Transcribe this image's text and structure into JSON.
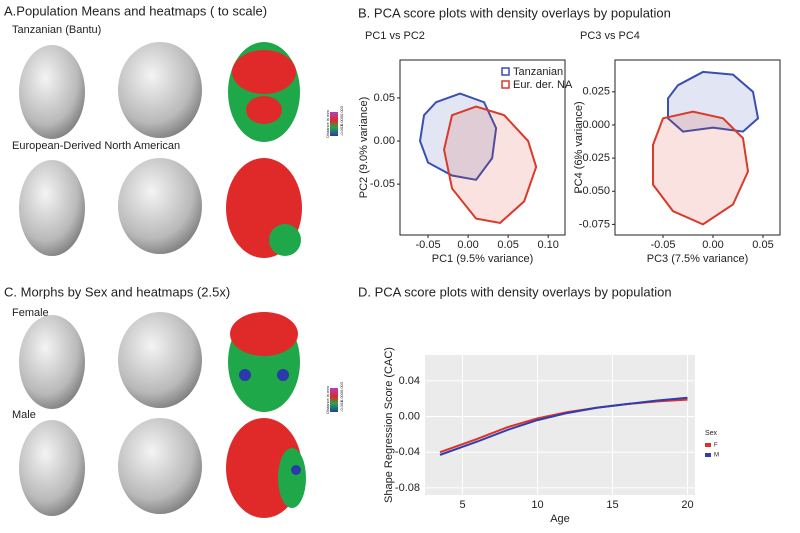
{
  "panels": {
    "a": {
      "title": "A.Population Means and heatmaps ( to scale)",
      "rows": [
        "Tanzanian (Bantu)",
        "European-Derived North American"
      ],
      "colorbar": {
        "title": "Distance in mm",
        "labels": [
          "-0.003",
          "0.000",
          "0.003"
        ]
      }
    },
    "b": {
      "title": "B. PCA score plots with density overlays by population"
    },
    "c": {
      "title": "C. Morphs by Sex and heatmaps (2.5x)",
      "rows": [
        "Female",
        "Male"
      ],
      "colorbar": {
        "title": "Distance in mm",
        "labels": [
          "-0.003",
          "0.000",
          "0.003"
        ]
      }
    },
    "d": {
      "title": "D. PCA score plots with density overlays by population"
    }
  },
  "chart_data": [
    {
      "type": "contour",
      "subtitle": "PC1 vs PC2",
      "x_label": "PC1 (9.5% variance)",
      "y_label": "PC2 (9.0% variance)",
      "xlim": [
        -0.085,
        0.121
      ],
      "ylim": [
        -0.109,
        0.094
      ],
      "xticks": [
        -0.05,
        {
          "value": 0,
          "label": "0.00"
        },
        0.05,
        {
          "value": 0.1,
          "label": "0.10"
        }
      ],
      "yticks": [
        0.05,
        {
          "value": 0,
          "label": "0.00"
        },
        -0.05
      ],
      "series": [
        {
          "name": "Tanzanian",
          "color": "#3a4fb0",
          "x": [
            -0.04,
            -0.01,
            0.02,
            0.035,
            0.03,
            0.01,
            -0.02,
            -0.05,
            -0.06,
            -0.055
          ],
          "y": [
            0.045,
            0.055,
            0.045,
            0.015,
            -0.02,
            -0.045,
            -0.04,
            -0.025,
            0.0,
            0.03
          ]
        },
        {
          "name": "Eur. der. NA",
          "color": "#d93a2a",
          "x": [
            -0.02,
            0.01,
            0.045,
            0.075,
            0.085,
            0.07,
            0.04,
            0.01,
            -0.02,
            -0.03
          ],
          "y": [
            0.03,
            0.04,
            0.03,
            0.0,
            -0.03,
            -0.07,
            -0.095,
            -0.09,
            -0.055,
            -0.01
          ]
        }
      ]
    },
    {
      "type": "contour",
      "subtitle": "PC3 vs PC4",
      "x_label": "PC3 (7.5% variance)",
      "y_label": "PC4 (6% variance)",
      "xlim": [
        -0.098,
        0.067
      ],
      "ylim": [
        -0.083,
        0.049
      ],
      "xticks": [
        -0.05,
        {
          "value": 0,
          "label": "0.00"
        },
        0.05
      ],
      "yticks": [
        0.025,
        {
          "value": 0,
          "label": "0.000"
        },
        -0.025,
        {
          "value": -0.05,
          "label": "-0.050"
        },
        -0.075
      ],
      "series": [
        {
          "color": "#3a4fb0",
          "x": [
            -0.035,
            -0.01,
            0.02,
            0.04,
            0.045,
            0.03,
            0.0,
            -0.03,
            -0.045,
            -0.045
          ],
          "y": [
            0.03,
            0.04,
            0.038,
            0.025,
            0.005,
            -0.005,
            -0.002,
            -0.005,
            0.005,
            0.02
          ]
        },
        {
          "color": "#d93a2a",
          "x": [
            -0.05,
            -0.02,
            0.01,
            0.03,
            0.035,
            0.02,
            -0.01,
            -0.04,
            -0.06,
            -0.06
          ],
          "y": [
            0.005,
            0.01,
            0.005,
            -0.01,
            -0.035,
            -0.06,
            -0.075,
            -0.065,
            -0.045,
            -0.015
          ]
        }
      ]
    },
    {
      "type": "line",
      "x_label": "Age",
      "y_label": "Shape Regression Score (CAC)",
      "legend_title": "Sex",
      "xlim": [
        2.5,
        20.5
      ],
      "ylim": [
        -0.088,
        0.069
      ],
      "xticks": [
        5,
        10,
        15,
        20
      ],
      "yticks": [
        0.04,
        {
          "value": 0,
          "label": "0.00"
        },
        -0.04,
        -0.08
      ],
      "x": [
        3.5,
        6,
        8,
        10,
        12,
        14,
        16,
        18,
        20
      ],
      "series": [
        {
          "name": "F",
          "color": "#e0302a",
          "values": [
            -0.04,
            -0.025,
            -0.012,
            -0.002,
            0.005,
            0.01,
            0.014,
            0.017,
            0.019
          ]
        },
        {
          "name": "M",
          "color": "#2c3fb0",
          "values": [
            -0.043,
            -0.028,
            -0.015,
            -0.004,
            0.004,
            0.01,
            0.014,
            0.018,
            0.021
          ]
        }
      ]
    }
  ]
}
